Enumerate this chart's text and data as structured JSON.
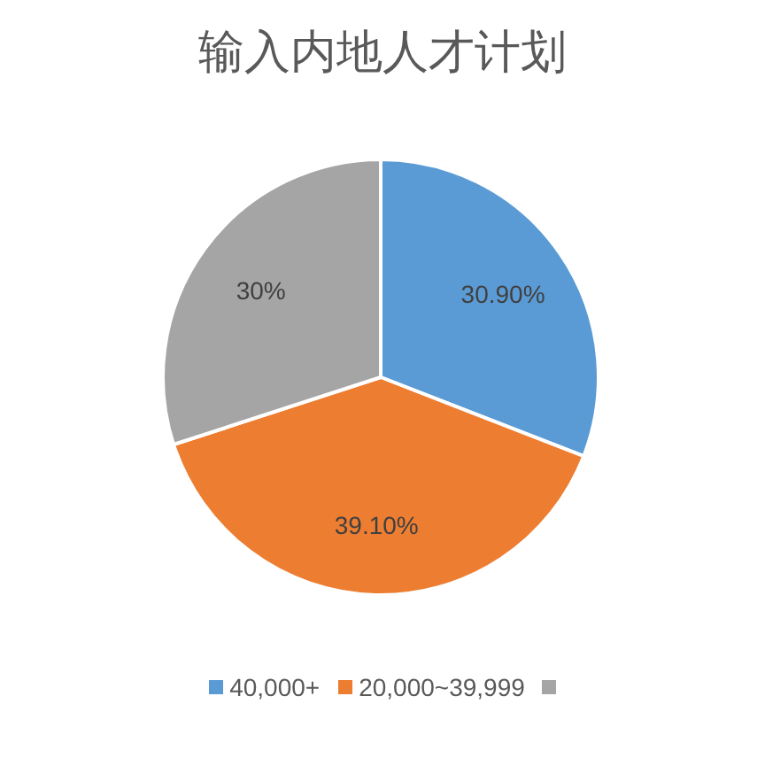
{
  "chart_data": {
    "type": "pie",
    "title": "输入内地人才计划",
    "categories": [
      "40,000+",
      "20,000~39,999",
      null
    ],
    "values": [
      30.9,
      39.1,
      30
    ],
    "value_labels": [
      "30.90%",
      "39.10%",
      "30%"
    ],
    "colors": [
      "#5b9bd5",
      "#ed7d31",
      "#a5a5a5"
    ],
    "legend": "bottom"
  }
}
